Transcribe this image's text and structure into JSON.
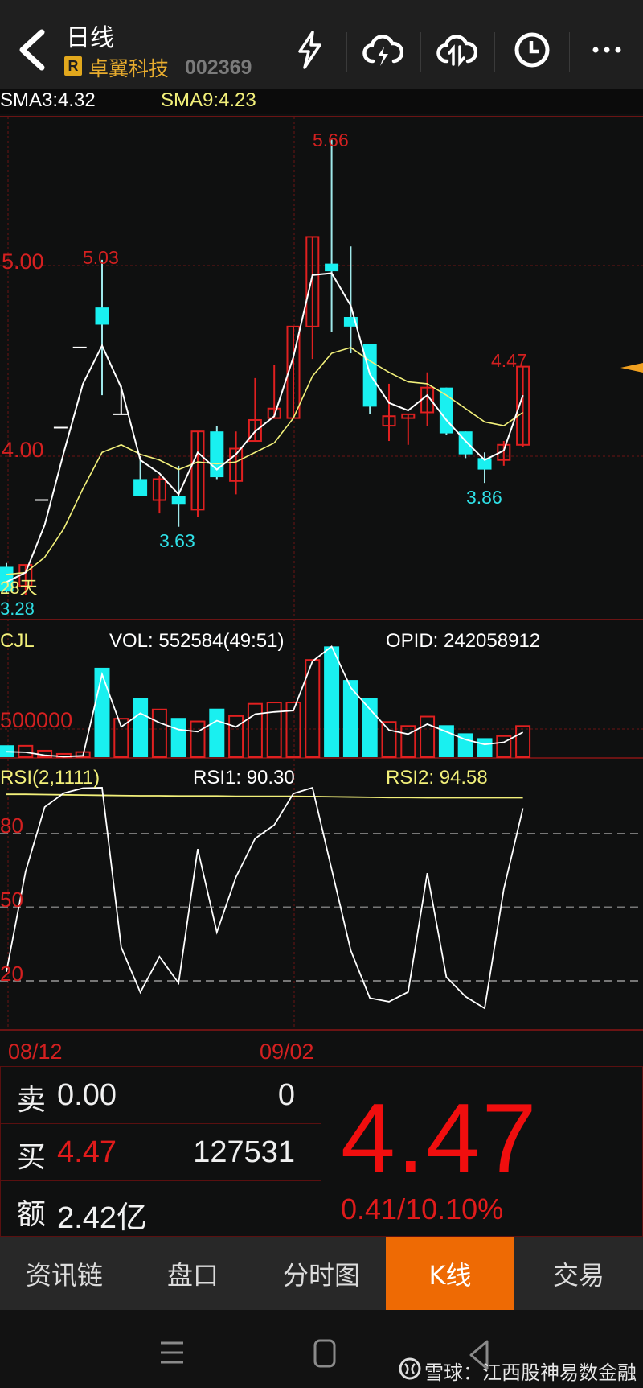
{
  "header": {
    "title": "日线",
    "badge": "R",
    "stock_name": "卓翼科技",
    "stock_code": "002369",
    "icons": [
      "back-chevron-icon",
      "lightning-icon",
      "cloud-lightning-icon",
      "cloud-sync-icon",
      "clock-icon",
      "more-icon"
    ]
  },
  "sma": {
    "sma3": "SMA3:4.32",
    "sma9": "SMA9:4.23"
  },
  "price_panel": {
    "axis_labels": [
      "5.00",
      "4.00"
    ],
    "high_label": "5.66",
    "peak1_label": "5.03",
    "low1_label": "3.63",
    "low2_label": "3.86",
    "last_label": "4.47",
    "left_low_label": "3.28",
    "overlay_label": "28天"
  },
  "volume_panel": {
    "title": "CJL",
    "vol": "VOL: 552584(49:51)",
    "opid": "OPID: 242058912",
    "axis_label": "500000"
  },
  "rsi_panel": {
    "title": "RSI(2,1111)",
    "rsi1": "RSI1: 90.30",
    "rsi2": "RSI2: 94.58",
    "axis_labels": [
      "80",
      "50",
      "20"
    ]
  },
  "dates": [
    "08/12",
    "09/02"
  ],
  "colors": {
    "up": "#e02020",
    "down": "#19f0f0",
    "sma3": "#ffffff",
    "sma9": "#f2f07a",
    "accent": "#ee6a04",
    "grid": "#6b1414"
  },
  "chart_data": {
    "type": "candlestick",
    "x_labels": {
      "0": "08/12",
      "15": "09/02"
    },
    "ohlc": [
      [
        3.42,
        3.44,
        3.28,
        3.29
      ],
      [
        3.32,
        3.43,
        3.27,
        3.43
      ],
      [
        3.77,
        3.77,
        3.77,
        3.77
      ],
      [
        4.15,
        4.15,
        4.15,
        4.15
      ],
      [
        4.57,
        4.57,
        4.57,
        4.57
      ],
      [
        4.78,
        5.03,
        4.32,
        4.69
      ],
      [
        4.22,
        4.37,
        4.22,
        4.22
      ],
      [
        3.88,
        4.0,
        3.79,
        3.79
      ],
      [
        3.77,
        3.9,
        3.7,
        3.88
      ],
      [
        3.79,
        3.95,
        3.63,
        3.75
      ],
      [
        3.72,
        4.13,
        3.68,
        4.13
      ],
      [
        4.13,
        4.16,
        3.88,
        3.89
      ],
      [
        3.87,
        4.13,
        3.8,
        4.04
      ],
      [
        4.08,
        4.41,
        4.08,
        4.19
      ],
      [
        4.2,
        4.48,
        4.2,
        4.25
      ],
      [
        4.2,
        4.68,
        4.2,
        4.68
      ],
      [
        4.68,
        5.15,
        4.51,
        5.15
      ],
      [
        5.01,
        5.66,
        4.65,
        4.97
      ],
      [
        4.73,
        5.1,
        4.54,
        4.68
      ],
      [
        4.59,
        4.59,
        4.22,
        4.26
      ],
      [
        4.16,
        4.38,
        4.08,
        4.21
      ],
      [
        4.2,
        4.22,
        4.06,
        4.22
      ],
      [
        4.23,
        4.44,
        4.16,
        4.36
      ],
      [
        4.36,
        4.36,
        4.11,
        4.12
      ],
      [
        4.13,
        4.13,
        3.99,
        4.01
      ],
      [
        3.99,
        4.02,
        3.86,
        3.93
      ],
      [
        3.98,
        4.08,
        3.95,
        4.06
      ],
      [
        4.06,
        4.47,
        4.05,
        4.47
      ]
    ],
    "flat_bars": [
      2,
      3,
      4,
      6
    ],
    "sma3": [
      3.34,
      3.39,
      3.64,
      4.02,
      4.38,
      4.58,
      4.36,
      3.98,
      3.91,
      3.8,
      4.02,
      3.93,
      4.01,
      4.13,
      4.21,
      4.52,
      4.95,
      4.96,
      4.79,
      4.43,
      4.28,
      4.24,
      4.32,
      4.19,
      4.08,
      3.98,
      4.03,
      4.32
    ],
    "sma9": [
      3.38,
      3.39,
      3.47,
      3.62,
      3.83,
      4.02,
      4.06,
      4.01,
      3.98,
      3.93,
      3.97,
      3.96,
      3.97,
      4.02,
      4.07,
      4.2,
      4.42,
      4.54,
      4.57,
      4.5,
      4.44,
      4.39,
      4.38,
      4.32,
      4.25,
      4.18,
      4.16,
      4.23
    ],
    "volume": [
      211000,
      202000,
      115000,
      58000,
      91000,
      1587000,
      683000,
      1043000,
      846000,
      697000,
      635000,
      861000,
      731000,
      947000,
      971000,
      971000,
      1726000,
      1966000,
      1370000,
      1043000,
      625000,
      553000,
      721000,
      567000,
      423000,
      337000,
      375000,
      552584
    ],
    "volume_down": [
      0,
      5,
      7,
      9,
      11,
      17,
      18,
      19,
      23,
      24,
      25
    ],
    "volume_ma": [
      96000,
      87000,
      34000,
      10000,
      24000,
      1471000,
      538000,
      779000,
      611000,
      490000,
      452000,
      649000,
      538000,
      764000,
      803000,
      827000,
      1702000,
      1966000,
      1236000,
      851000,
      481000,
      409000,
      587000,
      452000,
      312000,
      226000,
      264000,
      442000
    ],
    "rsi1": [
      23.7,
      64.5,
      90.8,
      96.5,
      98.5,
      98.7,
      33.7,
      15.3,
      29.9,
      19.1,
      73.7,
      39.8,
      62.3,
      78,
      83.5,
      96.3,
      98.7,
      65.5,
      32.4,
      13,
      11.5,
      15.5,
      63.9,
      21.5,
      13.6,
      8.8,
      57.4,
      90.3
    ],
    "rsi2": [
      96.0,
      96.0,
      95.9,
      95.8,
      95.7,
      95.6,
      95.5,
      95.4,
      95.4,
      95.3,
      95.3,
      95.3,
      95.2,
      95.2,
      95.2,
      95.2,
      95.1,
      95.0,
      94.9,
      94.8,
      94.7,
      94.7,
      94.6,
      94.6,
      94.6,
      94.6,
      94.58,
      94.58
    ],
    "price_range": [
      3.2,
      5.75
    ],
    "rsi_levels": [
      80,
      50,
      20
    ],
    "volume_ref": 500000
  },
  "quote": {
    "sell_label": "卖",
    "sell_price": "0.00",
    "sell_qty": "0",
    "buy_label": "买",
    "buy_price": "4.47",
    "buy_qty": "127531",
    "amount_label": "额",
    "amount": "2.42亿",
    "last_price": "4.47",
    "change": "0.41/10.10%"
  },
  "tabs": [
    {
      "label": "资讯链",
      "active": false
    },
    {
      "label": "盘口",
      "active": false
    },
    {
      "label": "分时图",
      "active": false
    },
    {
      "label": "K线",
      "active": true
    },
    {
      "label": "交易",
      "active": false
    }
  ],
  "watermark": "雪球：江西股神易数金融"
}
